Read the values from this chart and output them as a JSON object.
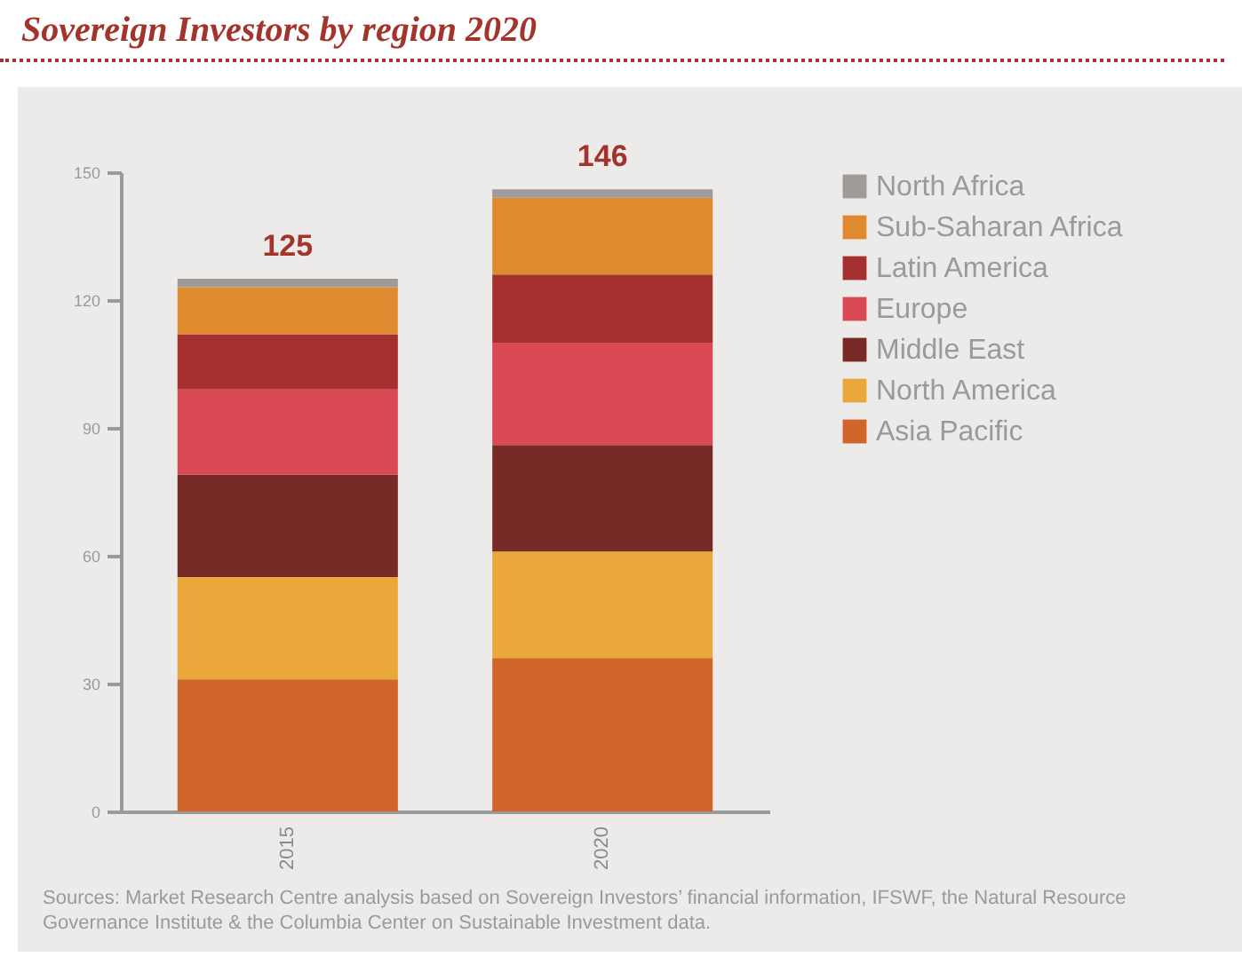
{
  "chart_data": {
    "type": "bar",
    "title": "Sovereign Investors by region 2020",
    "categories": [
      "2015",
      "2020"
    ],
    "stacked": true,
    "series": [
      {
        "name": "Asia Pacific",
        "color": "#d0652a",
        "values": [
          31,
          36
        ]
      },
      {
        "name": "North America",
        "color": "#eaa83a",
        "values": [
          24,
          25
        ]
      },
      {
        "name": "Middle East",
        "color": "#782a26",
        "values": [
          24,
          25
        ]
      },
      {
        "name": "Europe",
        "color": "#d94a55",
        "values": [
          20,
          24
        ]
      },
      {
        "name": "Latin America",
        "color": "#a53030",
        "values": [
          13,
          16
        ]
      },
      {
        "name": "Sub-Saharan Africa",
        "color": "#e08a30",
        "values": [
          11,
          18
        ]
      },
      {
        "name": "North Africa",
        "color": "#a09a98",
        "values": [
          2,
          2
        ]
      }
    ],
    "totals": [
      "125",
      "146"
    ],
    "ylim": [
      0,
      150
    ],
    "yticks": [
      0,
      30,
      60,
      90,
      120,
      150
    ],
    "grid": false,
    "legend": "right",
    "annotations": [
      "Sources: Market Research Centre analysis based on Sovereign Investors’ financial information, IFSWF, the Natural Resource Governance Institute & the Columbia Center on Sustainable Investment data."
    ]
  }
}
